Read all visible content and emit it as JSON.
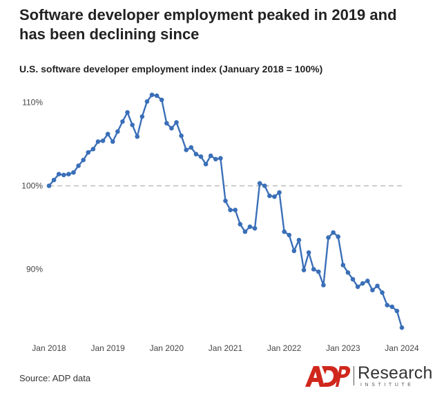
{
  "title": "Software developer employment peaked in 2019 and has been declining since",
  "subtitle": "U.S. software developer employment index (January 2018 = 100%)",
  "source": "Source: ADP data",
  "logo": {
    "brand": "ADP",
    "research": "Research",
    "institute": "INSTITUTE"
  },
  "colors": {
    "line": "#3a6fb8",
    "reference": "#bbbbbb",
    "brand_red": "#d0271d"
  },
  "chart_data": {
    "type": "line",
    "title": "U.S. software developer employment index (January 2018 = 100%)",
    "xlabel": "",
    "ylabel": "",
    "x_ticks": [
      "Jan 2018",
      "Jan 2019",
      "Jan 2020",
      "Jan 2021",
      "Jan 2022",
      "Jan 2023",
      "Jan 2024"
    ],
    "y_ticks": [
      "90%",
      "100%",
      "110%"
    ],
    "y_tick_values": [
      90,
      100,
      110
    ],
    "ylim": [
      82.5,
      112.5
    ],
    "reference_line": 100,
    "grid": false,
    "series": [
      {
        "x": [
          "2018-01",
          "2018-02",
          "2018-03",
          "2018-04",
          "2018-05",
          "2018-06",
          "2018-07",
          "2018-08",
          "2018-09",
          "2018-10",
          "2018-11",
          "2018-12",
          "2019-01",
          "2019-02",
          "2019-03",
          "2019-04",
          "2019-05",
          "2019-06",
          "2019-07",
          "2019-08",
          "2019-09",
          "2019-10",
          "2019-11",
          "2019-12",
          "2020-01",
          "2020-02",
          "2020-03",
          "2020-04",
          "2020-05",
          "2020-06",
          "2020-07",
          "2020-08",
          "2020-09",
          "2020-10",
          "2020-11",
          "2020-12",
          "2021-01",
          "2021-02",
          "2021-03",
          "2021-04",
          "2021-05",
          "2021-06",
          "2021-07",
          "2021-08",
          "2021-09",
          "2021-10",
          "2021-11",
          "2021-12",
          "2022-01",
          "2022-02",
          "2022-03",
          "2022-04",
          "2022-05",
          "2022-06",
          "2022-07",
          "2022-08",
          "2022-09",
          "2022-10",
          "2022-11",
          "2022-12",
          "2023-01",
          "2023-02",
          "2023-03",
          "2023-04",
          "2023-05",
          "2023-06",
          "2023-07",
          "2023-08",
          "2023-09",
          "2023-10",
          "2023-11",
          "2023-12",
          "2024-01"
        ],
        "values": [
          100.0,
          100.7,
          101.4,
          101.3,
          101.4,
          101.6,
          102.4,
          103.1,
          104.0,
          104.4,
          105.3,
          105.4,
          106.2,
          105.3,
          106.5,
          107.7,
          108.8,
          107.3,
          105.9,
          108.3,
          110.1,
          110.9,
          110.8,
          110.3,
          107.5,
          106.9,
          107.6,
          106.0,
          104.3,
          104.6,
          103.8,
          103.5,
          102.6,
          103.6,
          103.2,
          103.3,
          98.2,
          97.1,
          97.1,
          95.4,
          94.5,
          95.1,
          94.9,
          100.3,
          100.0,
          98.8,
          98.7,
          99.2,
          94.5,
          94.1,
          92.2,
          93.5,
          89.9,
          92.0,
          90.0,
          89.7,
          88.1,
          93.8,
          94.4,
          93.9,
          90.5,
          89.6,
          88.8,
          87.9,
          88.3,
          88.6,
          87.5,
          88.0,
          87.2,
          85.7,
          85.5,
          85.0,
          83.0
        ]
      }
    ]
  }
}
